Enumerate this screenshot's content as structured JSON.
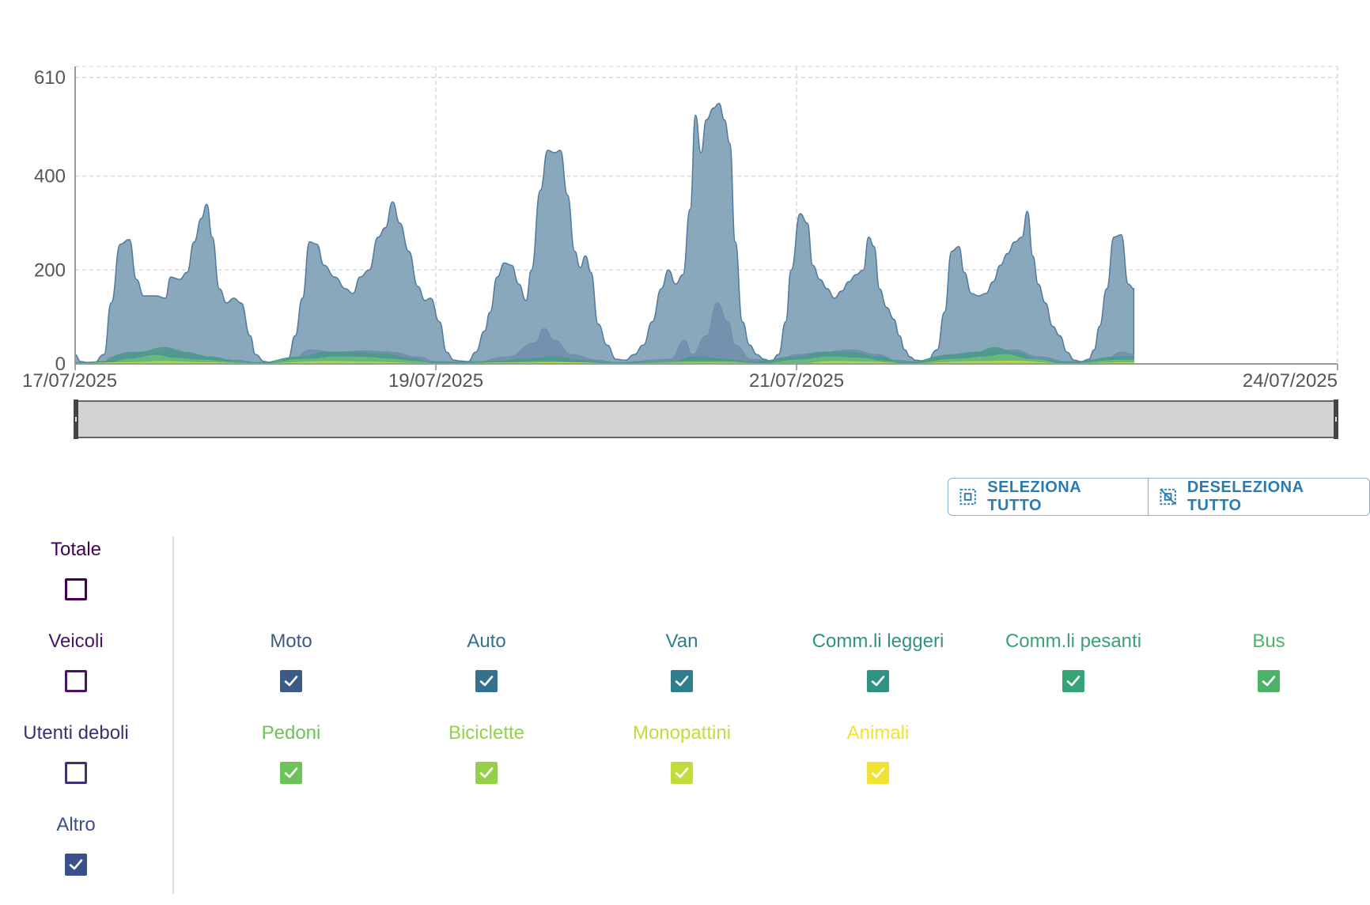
{
  "chart_data": {
    "type": "area",
    "y_ticks": [
      0,
      200,
      400,
      610
    ],
    "ylim": [
      0,
      610
    ],
    "x_ticks": [
      "17/07/2025",
      "19/07/2025",
      "21/07/2025",
      "24/07/2025"
    ],
    "grid": true,
    "series": [
      {
        "color": "#7d9fb4",
        "points": [
          [
            0,
            20
          ],
          [
            0.03,
            5
          ],
          [
            0.1,
            0
          ],
          [
            0.16,
            20
          ],
          [
            0.2,
            130
          ],
          [
            0.25,
            255
          ],
          [
            0.3,
            265
          ],
          [
            0.34,
            180
          ],
          [
            0.38,
            145
          ],
          [
            0.45,
            145
          ],
          [
            0.5,
            140
          ],
          [
            0.53,
            185
          ],
          [
            0.58,
            180
          ],
          [
            0.62,
            195
          ],
          [
            0.66,
            260
          ],
          [
            0.7,
            310
          ],
          [
            0.73,
            340
          ],
          [
            0.76,
            270
          ],
          [
            0.8,
            160
          ],
          [
            0.84,
            130
          ],
          [
            0.88,
            140
          ],
          [
            0.92,
            130
          ],
          [
            0.97,
            60
          ],
          [
            1.0,
            20
          ],
          [
            1.05,
            5
          ],
          [
            1.1,
            0
          ],
          [
            1.18,
            10
          ],
          [
            1.22,
            60
          ],
          [
            1.26,
            140
          ],
          [
            1.3,
            260
          ],
          [
            1.34,
            255
          ],
          [
            1.38,
            210
          ],
          [
            1.44,
            185
          ],
          [
            1.5,
            160
          ],
          [
            1.54,
            150
          ],
          [
            1.58,
            185
          ],
          [
            1.63,
            200
          ],
          [
            1.68,
            270
          ],
          [
            1.72,
            290
          ],
          [
            1.76,
            345
          ],
          [
            1.8,
            300
          ],
          [
            1.85,
            240
          ],
          [
            1.9,
            165
          ],
          [
            1.94,
            135
          ],
          [
            1.97,
            140
          ],
          [
            2.02,
            90
          ],
          [
            2.06,
            25
          ],
          [
            2.1,
            8
          ],
          [
            2.14,
            6
          ],
          [
            2.18,
            5
          ],
          [
            2.22,
            25
          ],
          [
            2.27,
            70
          ],
          [
            2.3,
            110
          ],
          [
            2.34,
            185
          ],
          [
            2.38,
            215
          ],
          [
            2.42,
            210
          ],
          [
            2.46,
            170
          ],
          [
            2.5,
            135
          ],
          [
            2.53,
            200
          ],
          [
            2.58,
            370
          ],
          [
            2.62,
            455
          ],
          [
            2.66,
            450
          ],
          [
            2.69,
            455
          ],
          [
            2.73,
            360
          ],
          [
            2.77,
            240
          ],
          [
            2.8,
            205
          ],
          [
            2.83,
            230
          ],
          [
            2.86,
            195
          ],
          [
            2.9,
            85
          ],
          [
            2.95,
            40
          ],
          [
            3.0,
            10
          ],
          [
            3.05,
            8
          ],
          [
            3.1,
            20
          ],
          [
            3.15,
            40
          ],
          [
            3.2,
            90
          ],
          [
            3.25,
            160
          ],
          [
            3.29,
            200
          ],
          [
            3.33,
            170
          ],
          [
            3.37,
            190
          ],
          [
            3.41,
            330
          ],
          [
            3.44,
            530
          ],
          [
            3.47,
            450
          ],
          [
            3.5,
            520
          ],
          [
            3.54,
            545
          ],
          [
            3.57,
            555
          ],
          [
            3.6,
            520
          ],
          [
            3.63,
            470
          ],
          [
            3.66,
            260
          ],
          [
            3.7,
            90
          ],
          [
            3.74,
            40
          ],
          [
            3.78,
            20
          ],
          [
            3.82,
            10
          ],
          [
            3.86,
            5
          ],
          [
            3.9,
            20
          ],
          [
            3.94,
            90
          ],
          [
            3.97,
            200
          ],
          [
            4.02,
            320
          ],
          [
            4.06,
            300
          ],
          [
            4.09,
            210
          ],
          [
            4.13,
            180
          ],
          [
            4.17,
            160
          ],
          [
            4.21,
            140
          ],
          [
            4.25,
            155
          ],
          [
            4.29,
            175
          ],
          [
            4.33,
            190
          ],
          [
            4.37,
            200
          ],
          [
            4.4,
            270
          ],
          [
            4.43,
            250
          ],
          [
            4.46,
            160
          ],
          [
            4.5,
            120
          ],
          [
            4.54,
            95
          ],
          [
            4.57,
            60
          ],
          [
            4.6,
            30
          ],
          [
            4.63,
            15
          ],
          [
            4.66,
            8
          ],
          [
            4.72,
            5
          ],
          [
            4.78,
            30
          ],
          [
            4.82,
            110
          ],
          [
            4.86,
            240
          ],
          [
            4.9,
            250
          ],
          [
            4.93,
            195
          ],
          [
            4.97,
            150
          ],
          [
            5.01,
            145
          ],
          [
            5.05,
            150
          ],
          [
            5.09,
            175
          ],
          [
            5.13,
            210
          ],
          [
            5.17,
            235
          ],
          [
            5.21,
            260
          ],
          [
            5.25,
            270
          ],
          [
            5.28,
            325
          ],
          [
            5.31,
            230
          ],
          [
            5.34,
            170
          ],
          [
            5.38,
            130
          ],
          [
            5.42,
            80
          ],
          [
            5.46,
            60
          ],
          [
            5.5,
            25
          ],
          [
            5.54,
            8
          ],
          [
            5.58,
            5
          ],
          [
            5.62,
            10
          ],
          [
            5.65,
            30
          ],
          [
            5.68,
            80
          ],
          [
            5.72,
            160
          ],
          [
            5.76,
            270
          ],
          [
            5.8,
            275
          ],
          [
            5.84,
            170
          ],
          [
            5.87,
            160
          ]
        ]
      },
      {
        "color": "#6d8eaa",
        "points": [
          [
            0,
            3
          ],
          [
            0.16,
            5
          ],
          [
            0.2,
            15
          ],
          [
            0.3,
            25
          ],
          [
            0.45,
            22
          ],
          [
            0.55,
            30
          ],
          [
            0.65,
            20
          ],
          [
            0.8,
            10
          ],
          [
            0.9,
            8
          ],
          [
            1.0,
            3
          ],
          [
            1.2,
            5
          ],
          [
            1.3,
            30
          ],
          [
            1.45,
            25
          ],
          [
            1.6,
            28
          ],
          [
            1.75,
            25
          ],
          [
            1.9,
            15
          ],
          [
            2.0,
            5
          ],
          [
            2.2,
            3
          ],
          [
            2.4,
            15
          ],
          [
            2.55,
            45
          ],
          [
            2.6,
            75
          ],
          [
            2.66,
            50
          ],
          [
            2.75,
            20
          ],
          [
            2.9,
            8
          ],
          [
            3.0,
            3
          ],
          [
            3.3,
            10
          ],
          [
            3.38,
            50
          ],
          [
            3.42,
            20
          ],
          [
            3.5,
            60
          ],
          [
            3.56,
            130
          ],
          [
            3.62,
            90
          ],
          [
            3.66,
            40
          ],
          [
            3.75,
            10
          ],
          [
            3.9,
            5
          ],
          [
            4.0,
            20
          ],
          [
            4.15,
            25
          ],
          [
            4.3,
            30
          ],
          [
            4.45,
            20
          ],
          [
            4.55,
            8
          ],
          [
            4.7,
            3
          ],
          [
            4.85,
            20
          ],
          [
            5.0,
            25
          ],
          [
            5.2,
            30
          ],
          [
            5.35,
            15
          ],
          [
            5.5,
            5
          ],
          [
            5.7,
            5
          ],
          [
            5.8,
            25
          ],
          [
            5.87,
            20
          ]
        ]
      },
      {
        "color": "#4a9a8a",
        "points": [
          [
            0,
            2
          ],
          [
            0.16,
            5
          ],
          [
            0.25,
            20
          ],
          [
            0.35,
            25
          ],
          [
            0.5,
            35
          ],
          [
            0.6,
            25
          ],
          [
            0.75,
            15
          ],
          [
            0.9,
            5
          ],
          [
            1.0,
            2
          ],
          [
            1.25,
            15
          ],
          [
            1.4,
            25
          ],
          [
            1.55,
            25
          ],
          [
            1.7,
            22
          ],
          [
            1.85,
            12
          ],
          [
            2.0,
            3
          ],
          [
            2.3,
            5
          ],
          [
            2.5,
            10
          ],
          [
            2.65,
            15
          ],
          [
            2.8,
            8
          ],
          [
            3.0,
            2
          ],
          [
            3.3,
            5
          ],
          [
            3.45,
            15
          ],
          [
            3.6,
            10
          ],
          [
            3.75,
            4
          ],
          [
            4.0,
            15
          ],
          [
            4.15,
            25
          ],
          [
            4.3,
            25
          ],
          [
            4.45,
            15
          ],
          [
            4.6,
            3
          ],
          [
            4.85,
            18
          ],
          [
            5.0,
            25
          ],
          [
            5.1,
            35
          ],
          [
            5.2,
            25
          ],
          [
            5.35,
            10
          ],
          [
            5.5,
            3
          ],
          [
            5.8,
            15
          ],
          [
            5.87,
            15
          ]
        ]
      },
      {
        "color": "#6cbc7a",
        "points": [
          [
            0,
            0
          ],
          [
            0.2,
            3
          ],
          [
            0.3,
            10
          ],
          [
            0.45,
            18
          ],
          [
            0.55,
            12
          ],
          [
            0.7,
            8
          ],
          [
            0.9,
            3
          ],
          [
            1.0,
            0
          ],
          [
            1.3,
            10
          ],
          [
            1.45,
            15
          ],
          [
            1.6,
            14
          ],
          [
            1.75,
            10
          ],
          [
            1.9,
            5
          ],
          [
            2.0,
            0
          ],
          [
            2.4,
            3
          ],
          [
            2.6,
            5
          ],
          [
            2.8,
            3
          ],
          [
            3.0,
            0
          ],
          [
            3.4,
            5
          ],
          [
            3.6,
            5
          ],
          [
            3.8,
            0
          ],
          [
            4.0,
            8
          ],
          [
            4.2,
            15
          ],
          [
            4.35,
            12
          ],
          [
            4.5,
            5
          ],
          [
            4.6,
            0
          ],
          [
            4.9,
            10
          ],
          [
            5.05,
            15
          ],
          [
            5.15,
            20
          ],
          [
            5.3,
            10
          ],
          [
            5.5,
            0
          ],
          [
            5.8,
            8
          ],
          [
            5.87,
            8
          ]
        ]
      },
      {
        "color": "#b9d64e",
        "points": [
          [
            0,
            0
          ],
          [
            0.3,
            3
          ],
          [
            0.5,
            5
          ],
          [
            0.7,
            3
          ],
          [
            1.0,
            0
          ],
          [
            1.4,
            5
          ],
          [
            1.6,
            4
          ],
          [
            2.0,
            0
          ],
          [
            2.5,
            2
          ],
          [
            2.7,
            3
          ],
          [
            3.0,
            0
          ],
          [
            3.5,
            2
          ],
          [
            4.0,
            0
          ],
          [
            4.2,
            5
          ],
          [
            4.4,
            4
          ],
          [
            4.6,
            0
          ],
          [
            5.0,
            5
          ],
          [
            5.2,
            6
          ],
          [
            5.5,
            0
          ],
          [
            5.87,
            3
          ]
        ]
      }
    ]
  },
  "controls": {
    "select_all_label": "SELEZIONA TUTTO",
    "deselect_all_label": "DESELEZIONA TUTTO"
  },
  "legend": {
    "groups": [
      {
        "label": "Totale",
        "color": "#440154",
        "checked": false
      },
      {
        "label": "Veicoli",
        "color": "#481467",
        "checked": false
      },
      {
        "label": "Utenti deboli",
        "color": "#3e2e75",
        "checked": false
      },
      {
        "label": "Altro",
        "color": "#3b4f8a",
        "checked": true
      }
    ],
    "categories_row1": [
      {
        "label": "Moto",
        "color": "#3b5a86",
        "checked": true
      },
      {
        "label": "Auto",
        "color": "#35708c",
        "checked": true
      },
      {
        "label": "Van",
        "color": "#2e7f8b",
        "checked": true
      },
      {
        "label": "Comm.li leggeri",
        "color": "#2e9382",
        "checked": true
      },
      {
        "label": "Comm.li pesanti",
        "color": "#36a374",
        "checked": true
      },
      {
        "label": "Bus",
        "color": "#4db368",
        "checked": true
      }
    ],
    "categories_row2": [
      {
        "label": "Pedoni",
        "color": "#6cc35a",
        "checked": true
      },
      {
        "label": "Biciclette",
        "color": "#95d04b",
        "checked": true
      },
      {
        "label": "Monopattini",
        "color": "#c2dc3a",
        "checked": true
      },
      {
        "label": "Animali",
        "color": "#f1e233",
        "checked": true
      }
    ]
  }
}
